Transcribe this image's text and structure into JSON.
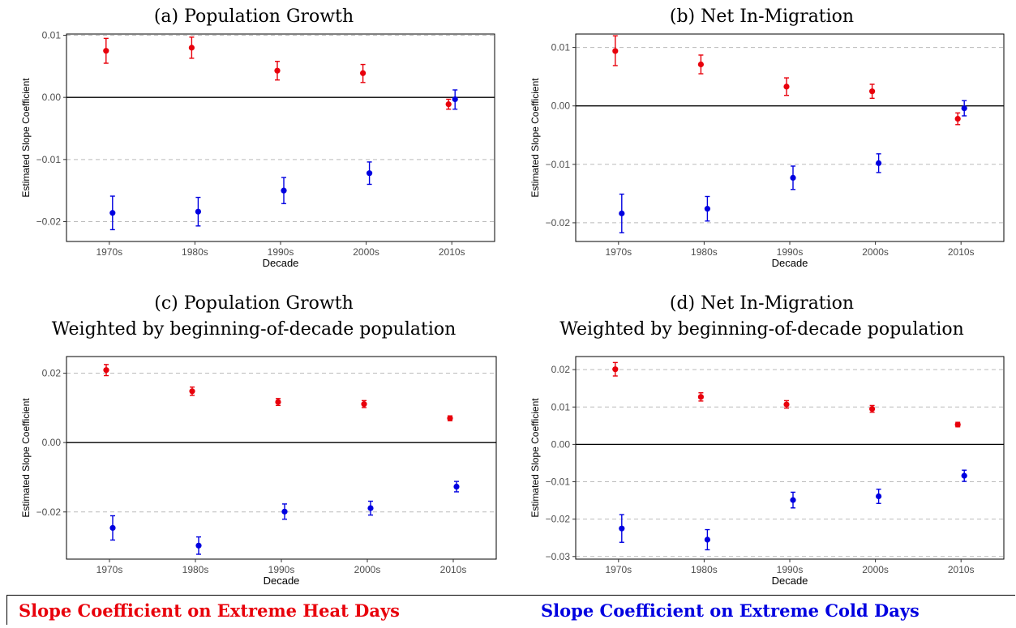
{
  "colors": {
    "heat": "#e8000b",
    "cold": "#0000e0",
    "grid": "#bbbbbb",
    "zero": "#000000"
  },
  "legend": {
    "heat_label": "Slope Coefficient on Extreme Heat Days",
    "cold_label": "Slope Coefficient on Extreme Cold Days"
  },
  "chart_data": [
    {
      "type": "scatter",
      "title": "(a) Population Growth",
      "subtitle": "",
      "xlabel": "Decade",
      "ylabel": "Estimated Slope Coefficient",
      "categories": [
        "1970s",
        "1980s",
        "1990s",
        "2000s",
        "2010s"
      ],
      "ylim": [
        -0.0232,
        0.0102
      ],
      "yticks": [
        0.01,
        0.0,
        -0.01,
        -0.02
      ],
      "ytick_labels": [
        "0.01",
        "0.00",
        "−0.01",
        "−0.02"
      ],
      "grid": "horizontal dashed",
      "series": [
        {
          "key": "heat",
          "values": [
            0.0075,
            0.008,
            0.0043,
            0.0039,
            -0.0011
          ],
          "lower": [
            0.0055,
            0.0063,
            0.0028,
            0.0024,
            -0.0019
          ],
          "upper": [
            0.0095,
            0.0097,
            0.0058,
            0.0053,
            -0.0003
          ]
        },
        {
          "key": "cold",
          "values": [
            -0.0186,
            -0.0184,
            -0.015,
            -0.0122,
            -0.0003
          ],
          "lower": [
            -0.0213,
            -0.0207,
            -0.0171,
            -0.014,
            -0.0019
          ],
          "upper": [
            -0.0159,
            -0.0161,
            -0.0129,
            -0.0104,
            0.0012
          ]
        }
      ]
    },
    {
      "type": "scatter",
      "title": "(b) Net In-Migration",
      "subtitle": "",
      "xlabel": "Decade",
      "ylabel": "Estimated Slope Coefficient",
      "categories": [
        "1970s",
        "1980s",
        "1990s",
        "2000s",
        "2010s"
      ],
      "ylim": [
        -0.0232,
        0.0123
      ],
      "yticks": [
        0.01,
        0.0,
        -0.01,
        -0.02
      ],
      "ytick_labels": [
        "0.01",
        "0.00",
        "−0.01",
        "−0.02"
      ],
      "grid": "horizontal dashed",
      "series": [
        {
          "key": "heat",
          "values": [
            0.0094,
            0.0071,
            0.0033,
            0.0025,
            -0.0022
          ],
          "lower": [
            0.0069,
            0.0055,
            0.0018,
            0.0013,
            -0.0032
          ],
          "upper": [
            0.012,
            0.0087,
            0.0048,
            0.0037,
            -0.0012
          ]
        },
        {
          "key": "cold",
          "values": [
            -0.0184,
            -0.0176,
            -0.0123,
            -0.0098,
            -0.0004
          ],
          "lower": [
            -0.0217,
            -0.0197,
            -0.0143,
            -0.0114,
            -0.0017
          ],
          "upper": [
            -0.0151,
            -0.0155,
            -0.0103,
            -0.0082,
            0.0009
          ]
        }
      ]
    },
    {
      "type": "scatter",
      "title": "(c) Population Growth",
      "subtitle": "Weighted by beginning-of-decade population",
      "xlabel": "Decade",
      "ylabel": "Estimated Slope Coefficient",
      "categories": [
        "1970s",
        "1980s",
        "1990s",
        "2000s",
        "2010s"
      ],
      "ylim": [
        -0.0336,
        0.0248
      ],
      "yticks": [
        0.02,
        0.0,
        -0.02
      ],
      "ytick_labels": [
        "0.02",
        "0.00",
        "−0.02"
      ],
      "grid": "horizontal dashed",
      "series": [
        {
          "key": "heat",
          "values": [
            0.0209,
            0.0148,
            0.0117,
            0.0111,
            0.007
          ],
          "lower": [
            0.0193,
            0.0136,
            0.0107,
            0.0101,
            0.0063
          ],
          "upper": [
            0.0225,
            0.016,
            0.0127,
            0.0121,
            0.0077
          ]
        },
        {
          "key": "cold",
          "values": [
            -0.0246,
            -0.0297,
            -0.0199,
            -0.0189,
            -0.0127
          ],
          "lower": [
            -0.0281,
            -0.0322,
            -0.0221,
            -0.0209,
            -0.0142
          ],
          "upper": [
            -0.0211,
            -0.0272,
            -0.0177,
            -0.0169,
            -0.0112
          ]
        }
      ]
    },
    {
      "type": "scatter",
      "title": "(d) Net In-Migration",
      "subtitle": "Weighted by beginning-of-decade population",
      "xlabel": "Decade",
      "ylabel": "Estimated Slope Coefficient",
      "categories": [
        "1970s",
        "1980s",
        "1990s",
        "2000s",
        "2010s"
      ],
      "ylim": [
        -0.0307,
        0.0235
      ],
      "yticks": [
        0.02,
        0.01,
        0.0,
        -0.01,
        -0.02,
        -0.03
      ],
      "ytick_labels": [
        "0.02",
        "0.01",
        "0.00",
        "−0.01",
        "−0.02",
        "−0.03"
      ],
      "grid": "horizontal dashed",
      "series": [
        {
          "key": "heat",
          "values": [
            0.0201,
            0.0127,
            0.0107,
            0.0095,
            0.0053
          ],
          "lower": [
            0.0183,
            0.0116,
            0.0097,
            0.0086,
            0.0047
          ],
          "upper": [
            0.0219,
            0.0138,
            0.0117,
            0.0104,
            0.0059
          ]
        },
        {
          "key": "cold",
          "values": [
            -0.0225,
            -0.0255,
            -0.0149,
            -0.0139,
            -0.0084
          ],
          "lower": [
            -0.0262,
            -0.0282,
            -0.017,
            -0.0158,
            -0.0099
          ],
          "upper": [
            -0.0188,
            -0.0228,
            -0.0128,
            -0.012,
            -0.0069
          ]
        }
      ]
    }
  ]
}
